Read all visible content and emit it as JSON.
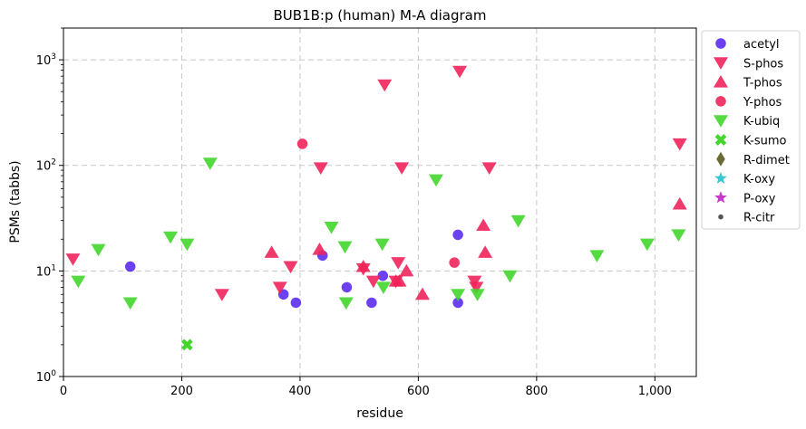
{
  "chart_data": {
    "type": "scatter",
    "title": "BUB1B:p (human) M-A diagram",
    "xlabel": "residue",
    "ylabel": "PSMs (tabbs)",
    "xlim": [
      0,
      1070
    ],
    "ylim": [
      1,
      2000
    ],
    "y_scale": "log",
    "grid": true,
    "legend_position": "outside-right",
    "x_ticks": [
      {
        "value": 0,
        "label": "0"
      },
      {
        "value": 200,
        "label": "200"
      },
      {
        "value": 400,
        "label": "400"
      },
      {
        "value": 600,
        "label": "600"
      },
      {
        "value": 800,
        "label": "800"
      },
      {
        "value": 1000,
        "label": "1,000"
      }
    ],
    "y_ticks": [
      {
        "value": 1,
        "base": "10",
        "exp": "0"
      },
      {
        "value": 10,
        "base": "10",
        "exp": "1"
      },
      {
        "value": 100,
        "base": "10",
        "exp": "2"
      },
      {
        "value": 1000,
        "base": "10",
        "exp": "3"
      }
    ],
    "series": [
      {
        "name": "acetyl",
        "marker": "circle",
        "color": "#5b2cf0",
        "points": [
          [
            113,
            11
          ],
          [
            372,
            6
          ],
          [
            393,
            5
          ],
          [
            438,
            14
          ],
          [
            479,
            7
          ],
          [
            521,
            5
          ],
          [
            540,
            9
          ],
          [
            667,
            22
          ],
          [
            667,
            5
          ]
        ]
      },
      {
        "name": "S-phos",
        "marker": "triangle-down",
        "color": "#f0245b",
        "points": [
          [
            16,
            13
          ],
          [
            268,
            6
          ],
          [
            366,
            7
          ],
          [
            384,
            11
          ],
          [
            435,
            95
          ],
          [
            507,
            10.5
          ],
          [
            524,
            8
          ],
          [
            543,
            580
          ],
          [
            562,
            8
          ],
          [
            566,
            12
          ],
          [
            572,
            95
          ],
          [
            670,
            780
          ],
          [
            695,
            8
          ],
          [
            698,
            7
          ],
          [
            720,
            95
          ],
          [
            1042,
            160
          ]
        ]
      },
      {
        "name": "T-phos",
        "marker": "triangle-up",
        "color": "#f0245b",
        "points": [
          [
            352,
            15
          ],
          [
            433,
            16
          ],
          [
            507,
            11
          ],
          [
            562,
            8
          ],
          [
            568,
            8
          ],
          [
            580,
            10
          ],
          [
            607,
            6
          ],
          [
            710,
            27
          ],
          [
            713,
            15
          ],
          [
            1042,
            43
          ]
        ]
      },
      {
        "name": "Y-phos",
        "marker": "circle",
        "color": "#f0245b",
        "points": [
          [
            404,
            160
          ],
          [
            661,
            12
          ]
        ]
      },
      {
        "name": "K-ubiq",
        "marker": "triangle-down",
        "color": "#44d62c",
        "points": [
          [
            25,
            8
          ],
          [
            59,
            16
          ],
          [
            113,
            5
          ],
          [
            181,
            21
          ],
          [
            209,
            18
          ],
          [
            248,
            105
          ],
          [
            453,
            26
          ],
          [
            476,
            17
          ],
          [
            478,
            5
          ],
          [
            539,
            18
          ],
          [
            541,
            7
          ],
          [
            630,
            73
          ],
          [
            667,
            6
          ],
          [
            700,
            6
          ],
          [
            755,
            9
          ],
          [
            769,
            30
          ],
          [
            902,
            14
          ],
          [
            987,
            18
          ],
          [
            1040,
            22
          ]
        ]
      },
      {
        "name": "K-sumo",
        "marker": "x",
        "color": "#44d62c",
        "points": [
          [
            209,
            2
          ]
        ]
      },
      {
        "name": "R-dimet",
        "marker": "diamond",
        "color": "#6b6b3a",
        "points": []
      },
      {
        "name": "K-oxy",
        "marker": "star",
        "color": "#3ac7cf",
        "points": []
      },
      {
        "name": "P-oxy",
        "marker": "star",
        "color": "#c43ac7",
        "points": []
      },
      {
        "name": "R-citr",
        "marker": "dot",
        "color": "#555555",
        "points": []
      }
    ]
  }
}
